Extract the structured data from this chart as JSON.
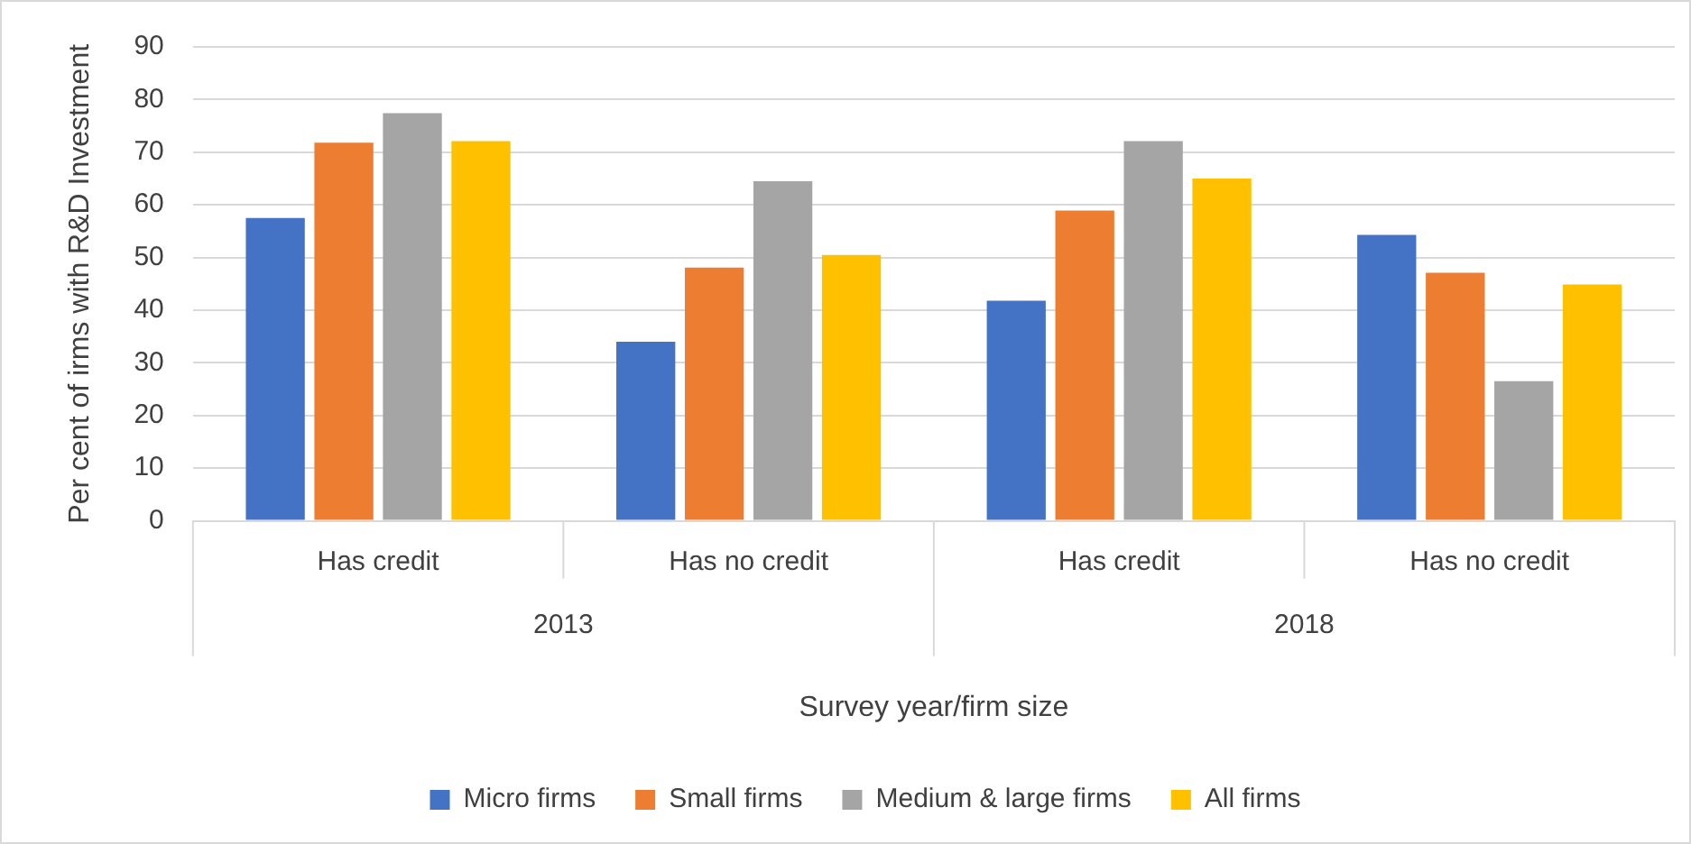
{
  "chart_data": {
    "type": "bar",
    "xlabel": "Survey year/firm size",
    "ylabel": "Per cent of irms with R&D Investment",
    "categories": [
      "Has credit",
      "Has no credit",
      "Has credit",
      "Has no credit"
    ],
    "series": [
      {
        "name": "Micro firms",
        "color": "#4472c4",
        "values": [
          57.5,
          34.0,
          41.8,
          54.3
        ]
      },
      {
        "name": "Small firms",
        "color": "#ed7d31",
        "values": [
          71.8,
          48.1,
          58.9,
          47.1
        ]
      },
      {
        "name": "Medium & large firms",
        "color": "#a5a5a5",
        "values": [
          77.4,
          64.5,
          72.1,
          26.5
        ]
      },
      {
        "name": "All firms",
        "color": "#ffc000",
        "values": [
          72.1,
          50.5,
          65.0,
          44.9
        ]
      }
    ],
    "annotations": [
      "2013",
      "2018"
    ],
    "ylim": [
      0,
      90
    ],
    "yticks": [
      0,
      10,
      20,
      30,
      40,
      50,
      60,
      70,
      80,
      90
    ],
    "grid": "y",
    "legend": "bottom"
  }
}
